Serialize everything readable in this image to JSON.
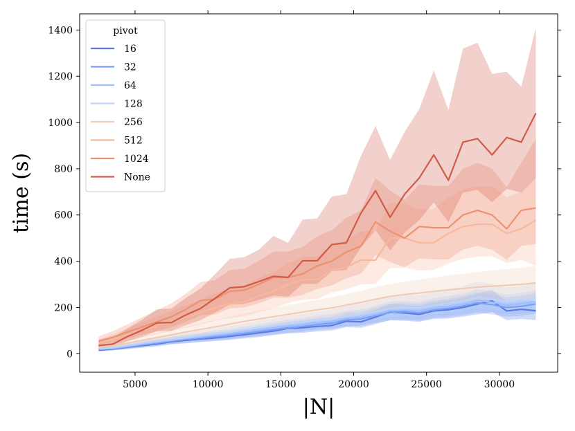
{
  "chart_data": {
    "type": "line",
    "title": "",
    "xlabel": "|N|",
    "ylabel": "time (s)",
    "xlim": [
      1200,
      34000
    ],
    "ylim": [
      -80,
      1470
    ],
    "xticks": [
      5000,
      10000,
      15000,
      20000,
      25000,
      30000
    ],
    "yticks": [
      0,
      200,
      400,
      600,
      800,
      1000,
      1200,
      1400
    ],
    "grid": false,
    "legend": {
      "title": "pivot",
      "position": "top-left"
    },
    "x": [
      2500,
      3500,
      4500,
      5500,
      6500,
      7500,
      8500,
      9500,
      10500,
      11500,
      12500,
      13500,
      14500,
      15500,
      16500,
      17500,
      18500,
      19500,
      20500,
      21500,
      22500,
      23500,
      24500,
      25500,
      26500,
      27500,
      28500,
      29500,
      30500,
      31500,
      32500
    ],
    "series": [
      {
        "name": "16",
        "color": "#5b7be3",
        "values": [
          15,
          20,
          28,
          35,
          42,
          52,
          58,
          64,
          68,
          75,
          82,
          90,
          98,
          110,
          112,
          118,
          122,
          140,
          138,
          158,
          180,
          176,
          170,
          185,
          190,
          200,
          215,
          228,
          185,
          192,
          186
        ],
        "lower": [
          10,
          14,
          20,
          26,
          32,
          40,
          45,
          50,
          54,
          60,
          66,
          72,
          80,
          88,
          90,
          96,
          100,
          115,
          112,
          128,
          145,
          142,
          138,
          150,
          152,
          160,
          170,
          180,
          145,
          150,
          145
        ],
        "upper": [
          22,
          28,
          38,
          46,
          54,
          66,
          72,
          80,
          85,
          92,
          100,
          110,
          120,
          134,
          136,
          142,
          148,
          168,
          166,
          190,
          216,
          212,
          205,
          222,
          230,
          242,
          260,
          276,
          225,
          235,
          228
        ]
      },
      {
        "name": "32",
        "color": "#7b9ff2",
        "values": [
          18,
          22,
          30,
          38,
          46,
          55,
          62,
          68,
          74,
          80,
          88,
          96,
          104,
          112,
          118,
          126,
          132,
          146,
          150,
          164,
          178,
          182,
          176,
          190,
          196,
          206,
          220,
          212,
          200,
          205,
          215
        ],
        "lower": [
          12,
          16,
          22,
          28,
          35,
          42,
          48,
          53,
          58,
          63,
          70,
          76,
          84,
          90,
          95,
          102,
          107,
          118,
          121,
          133,
          144,
          147,
          142,
          154,
          158,
          166,
          178,
          170,
          160,
          164,
          172
        ],
        "upper": [
          26,
          30,
          40,
          50,
          60,
          70,
          78,
          86,
          92,
          100,
          108,
          118,
          128,
          138,
          144,
          154,
          160,
          178,
          182,
          198,
          216,
          220,
          214,
          230,
          238,
          250,
          266,
          258,
          244,
          250,
          262
        ]
      },
      {
        "name": "64",
        "color": "#9ebeff",
        "values": [
          20,
          24,
          33,
          42,
          50,
          58,
          66,
          72,
          80,
          86,
          95,
          104,
          112,
          120,
          126,
          134,
          140,
          152,
          158,
          170,
          186,
          188,
          184,
          198,
          205,
          214,
          230,
          222,
          210,
          216,
          225
        ],
        "lower": [
          13,
          17,
          24,
          31,
          38,
          44,
          51,
          56,
          62,
          67,
          75,
          82,
          90,
          96,
          101,
          108,
          113,
          123,
          128,
          138,
          151,
          153,
          149,
          161,
          166,
          173,
          186,
          180,
          170,
          174,
          181
        ],
        "upper": [
          29,
          33,
          44,
          55,
          64,
          74,
          83,
          90,
          100,
          107,
          117,
          128,
          137,
          147,
          154,
          164,
          171,
          185,
          192,
          207,
          226,
          229,
          224,
          241,
          249,
          260,
          279,
          270,
          256,
          262,
          274
        ]
      },
      {
        "name": "128",
        "color": "#c0d4f5",
        "values": [
          22,
          27,
          36,
          46,
          54,
          62,
          70,
          78,
          86,
          94,
          102,
          112,
          120,
          130,
          136,
          144,
          150,
          162,
          170,
          182,
          196,
          200,
          198,
          210,
          218,
          228,
          244,
          236,
          224,
          230,
          238
        ],
        "lower": [
          14,
          18,
          26,
          34,
          41,
          47,
          54,
          60,
          66,
          72,
          79,
          87,
          94,
          102,
          107,
          114,
          119,
          129,
          136,
          146,
          158,
          162,
          160,
          170,
          176,
          184,
          198,
          192,
          182,
          186,
          193
        ],
        "upper": [
          32,
          38,
          48,
          60,
          70,
          80,
          90,
          100,
          110,
          120,
          130,
          142,
          152,
          164,
          172,
          182,
          190,
          206,
          216,
          232,
          250,
          254,
          252,
          268,
          278,
          292,
          312,
          302,
          286,
          294,
          306
        ]
      },
      {
        "name": "256",
        "color": "#f2cbb7",
        "values": [
          28,
          35,
          46,
          58,
          70,
          82,
          94,
          105,
          116,
          128,
          140,
          150,
          160,
          170,
          180,
          190,
          198,
          210,
          222,
          236,
          248,
          256,
          262,
          270,
          276,
          282,
          288,
          292,
          296,
          300,
          306
        ],
        "lower": [
          18,
          24,
          33,
          43,
          53,
          63,
          73,
          82,
          91,
          100,
          110,
          118,
          126,
          134,
          142,
          150,
          156,
          166,
          176,
          187,
          197,
          204,
          209,
          215,
          220,
          225,
          230,
          233,
          236,
          240,
          244
        ],
        "upper": [
          40,
          48,
          62,
          76,
          90,
          104,
          118,
          132,
          146,
          160,
          174,
          186,
          198,
          210,
          222,
          234,
          244,
          258,
          272,
          288,
          302,
          312,
          320,
          330,
          338,
          346,
          354,
          360,
          366,
          372,
          380
        ]
      },
      {
        "name": "512",
        "color": "#f7b89c",
        "values": [
          45,
          62,
          82,
          102,
          120,
          140,
          158,
          178,
          200,
          215,
          225,
          250,
          270,
          300,
          320,
          320,
          360,
          375,
          405,
          405,
          500,
          500,
          480,
          480,
          520,
          550,
          560,
          560,
          520,
          540,
          578
        ],
        "lower": [
          30,
          42,
          56,
          70,
          84,
          98,
          112,
          126,
          142,
          154,
          162,
          180,
          196,
          218,
          234,
          236,
          265,
          278,
          300,
          302,
          370,
          372,
          360,
          362,
          390,
          410,
          420,
          422,
          392,
          405,
          380
        ],
        "upper": [
          62,
          84,
          110,
          136,
          160,
          186,
          210,
          234,
          262,
          282,
          296,
          328,
          354,
          392,
          418,
          420,
          470,
          490,
          528,
          530,
          650,
          650,
          624,
          626,
          676,
          710,
          724,
          726,
          676,
          700,
          760
        ]
      },
      {
        "name": "1024",
        "color": "#ec9172",
        "values": [
          55,
          72,
          94,
          116,
          138,
          160,
          192,
          230,
          236,
          270,
          275,
          300,
          330,
          330,
          345,
          380,
          400,
          440,
          465,
          570,
          530,
          500,
          550,
          545,
          545,
          600,
          620,
          600,
          540,
          620,
          630
        ],
        "lower": [
          38,
          50,
          66,
          82,
          98,
          114,
          138,
          166,
          170,
          196,
          200,
          218,
          242,
          242,
          254,
          280,
          296,
          326,
          346,
          426,
          396,
          374,
          412,
          408,
          408,
          450,
          466,
          450,
          406,
          466,
          474
        ],
        "upper": [
          76,
          98,
          128,
          158,
          188,
          218,
          260,
          310,
          318,
          362,
          368,
          402,
          442,
          442,
          462,
          508,
          534,
          588,
          620,
          760,
          706,
          666,
          732,
          726,
          726,
          800,
          826,
          800,
          720,
          826,
          930
        ]
      },
      {
        "name": "None",
        "color": "#d25a48",
        "values": [
          35,
          42,
          75,
          102,
          133,
          135,
          168,
          196,
          240,
          285,
          290,
          312,
          335,
          330,
          402,
          402,
          472,
          480,
          608,
          705,
          590,
          690,
          760,
          860,
          750,
          915,
          930,
          860,
          935,
          915,
          1040
        ],
        "lower": [
          24,
          30,
          54,
          74,
          97,
          99,
          124,
          145,
          178,
          212,
          216,
          233,
          251,
          247,
          302,
          302,
          356,
          362,
          460,
          534,
          447,
          524,
          578,
          654,
          570,
          697,
          709,
          655,
          713,
          697,
          760
        ],
        "upper": [
          58,
          70,
          110,
          148,
          192,
          196,
          242,
          282,
          345,
          410,
          418,
          450,
          510,
          480,
          580,
          585,
          680,
          690,
          855,
          985,
          838,
          960,
          1058,
          1225,
          1055,
          1320,
          1345,
          1210,
          1220,
          1155,
          1410
        ]
      }
    ]
  }
}
